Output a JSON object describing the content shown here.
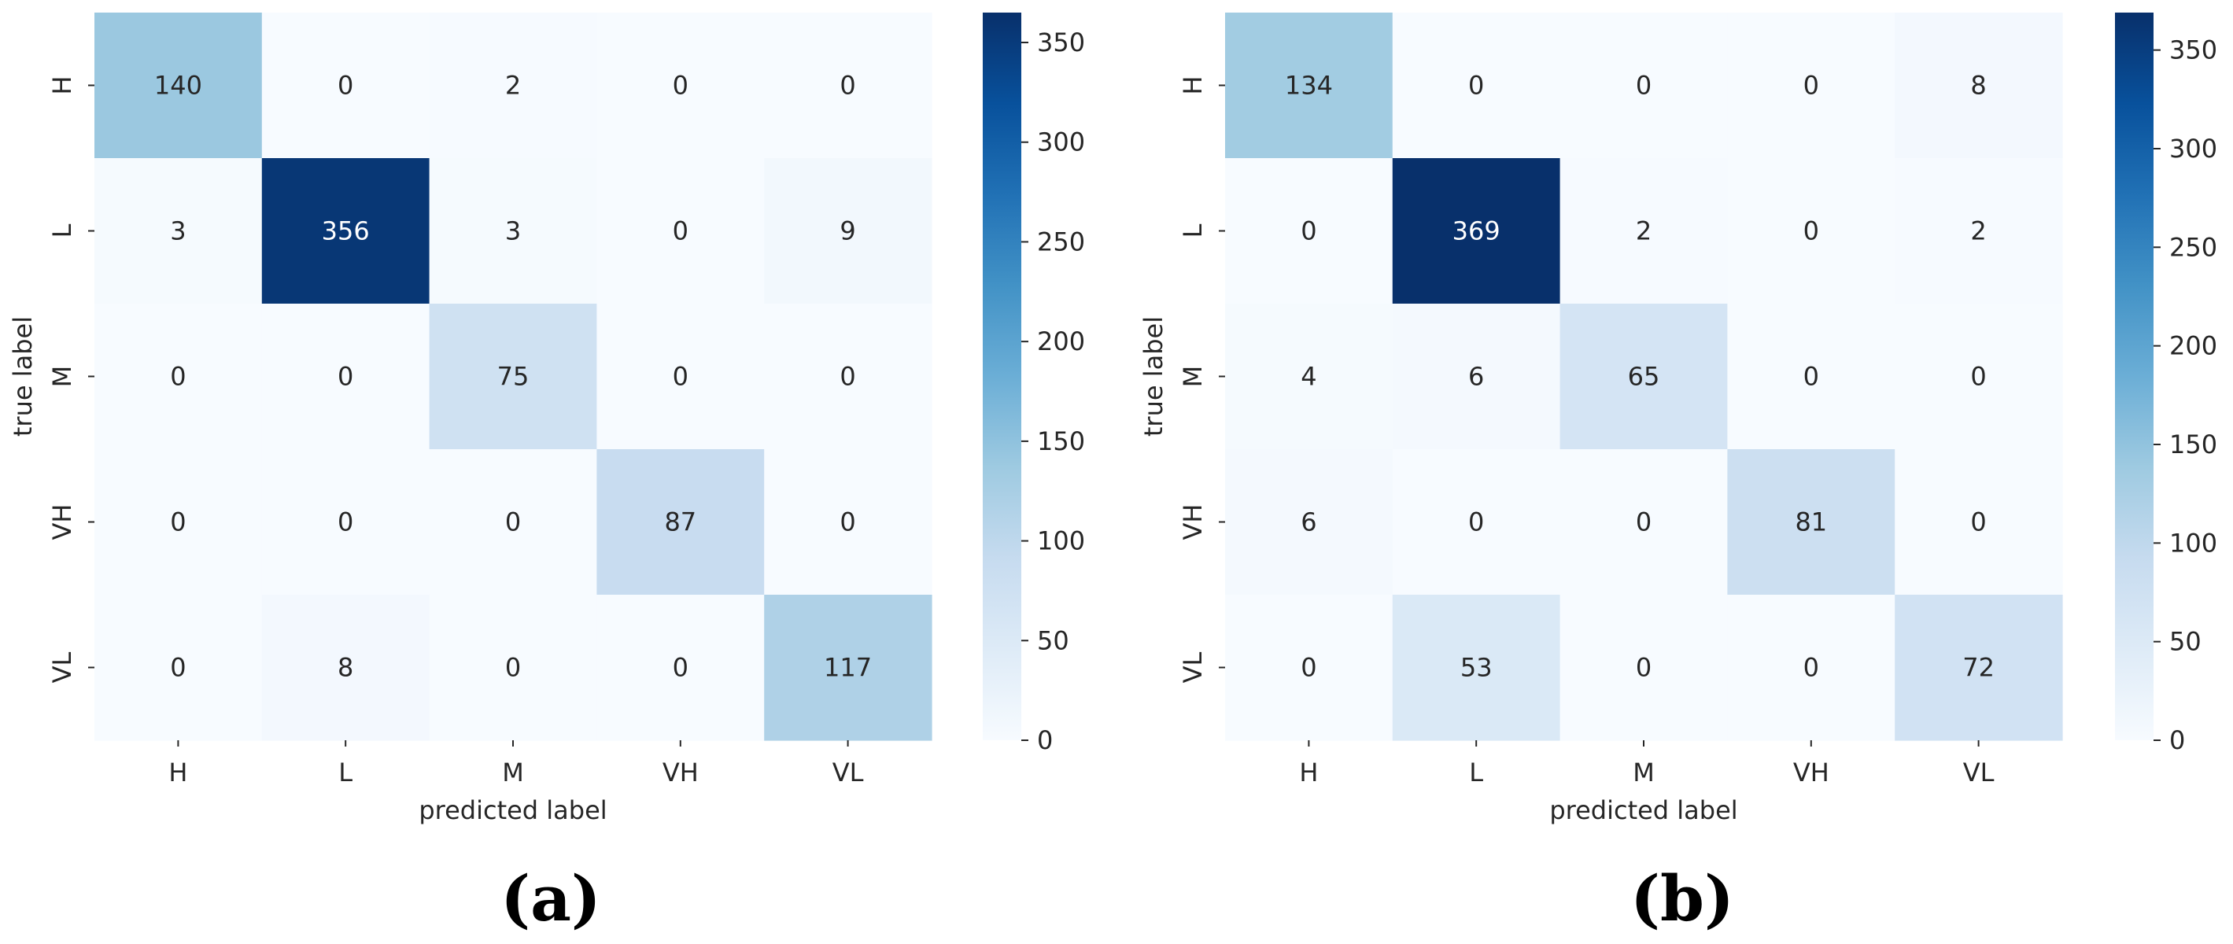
{
  "chart_data": [
    {
      "type": "heatmap",
      "panel": "(a)",
      "xlabel": "predicted label",
      "ylabel": "true label",
      "x_categories": [
        "H",
        "L",
        "M",
        "VH",
        "VL"
      ],
      "y_categories": [
        "H",
        "L",
        "M",
        "VH",
        "VL"
      ],
      "values": [
        [
          140,
          0,
          2,
          0,
          0
        ],
        [
          3,
          356,
          3,
          0,
          9
        ],
        [
          0,
          0,
          75,
          0,
          0
        ],
        [
          0,
          0,
          0,
          87,
          0
        ],
        [
          0,
          8,
          0,
          0,
          117
        ]
      ],
      "colorbar": {
        "colormap": "Blues",
        "vmin": 0,
        "vmax": 365,
        "ticks": [
          0,
          50,
          100,
          150,
          200,
          250,
          300,
          350
        ]
      }
    },
    {
      "type": "heatmap",
      "panel": "(b)",
      "xlabel": "predicted label",
      "ylabel": "true label",
      "x_categories": [
        "H",
        "L",
        "M",
        "VH",
        "VL"
      ],
      "y_categories": [
        "H",
        "L",
        "M",
        "VH",
        "VL"
      ],
      "values": [
        [
          134,
          0,
          0,
          0,
          8
        ],
        [
          0,
          369,
          2,
          0,
          2
        ],
        [
          4,
          6,
          65,
          0,
          0
        ],
        [
          6,
          0,
          0,
          81,
          0
        ],
        [
          0,
          53,
          0,
          0,
          72
        ]
      ],
      "colorbar": {
        "colormap": "Blues",
        "vmin": 0,
        "vmax": 369,
        "ticks": [
          0,
          50,
          100,
          150,
          200,
          250,
          300,
          350
        ]
      }
    }
  ]
}
